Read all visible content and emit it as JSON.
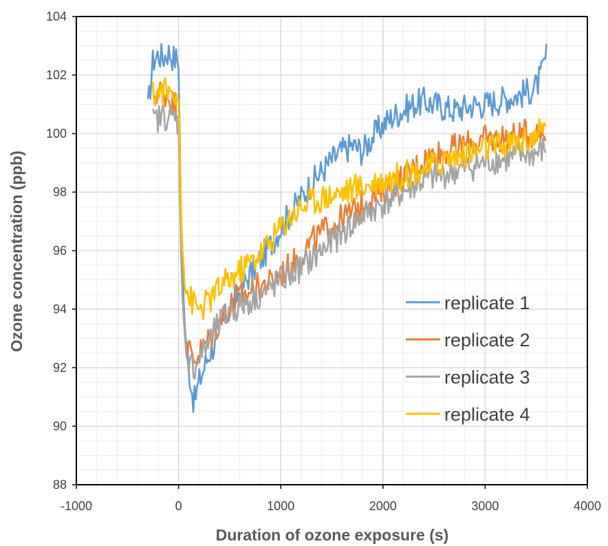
{
  "chart_data": {
    "type": "line",
    "title": "",
    "xlabel": "Duration of ozone exposure (s)",
    "ylabel": "Ozone concentration (ppb)",
    "xlim": [
      -1000,
      4000
    ],
    "ylim": [
      88,
      104
    ],
    "x_ticks": [
      -1000,
      0,
      1000,
      2000,
      3000,
      4000
    ],
    "y_ticks": [
      88,
      90,
      92,
      94,
      96,
      98,
      100,
      102,
      104
    ],
    "grid": true,
    "minor_grid": true,
    "legend_position": "lower-right",
    "series": [
      {
        "name": "replicate 1",
        "color": "#5B9BD5",
        "x": [
          -300,
          -250,
          -200,
          -150,
          -100,
          -50,
          0,
          30,
          60,
          100,
          150,
          200,
          250,
          300,
          350,
          400,
          500,
          600,
          700,
          800,
          900,
          1000,
          1100,
          1200,
          1300,
          1400,
          1500,
          1600,
          1700,
          1800,
          1900,
          2000,
          2100,
          2200,
          2300,
          2400,
          2500,
          2600,
          2700,
          2800,
          2900,
          3000,
          3100,
          3200,
          3300,
          3400,
          3500,
          3550,
          3600
        ],
        "y": [
          100.8,
          102.5,
          102.7,
          102.6,
          102.8,
          102.6,
          102.5,
          96.0,
          93.5,
          92.0,
          90.8,
          91.5,
          92.0,
          92.5,
          92.8,
          93.3,
          94.0,
          94.6,
          95.2,
          95.7,
          96.2,
          96.8,
          97.3,
          97.8,
          98.3,
          98.7,
          99.1,
          99.4,
          99.6,
          99.4,
          99.9,
          100.3,
          100.6,
          100.8,
          101.0,
          101.1,
          101.0,
          100.9,
          100.8,
          100.9,
          101.0,
          101.0,
          101.1,
          101.2,
          101.3,
          101.4,
          101.6,
          102.0,
          102.7
        ]
      },
      {
        "name": "replicate 2",
        "color": "#ED7D31",
        "x": [
          -250,
          -200,
          -150,
          -100,
          -50,
          0,
          30,
          60,
          100,
          150,
          200,
          250,
          300,
          350,
          400,
          500,
          600,
          700,
          800,
          900,
          1000,
          1100,
          1200,
          1300,
          1400,
          1500,
          1600,
          1700,
          1800,
          1900,
          2000,
          2100,
          2200,
          2300,
          2400,
          2500,
          2600,
          2700,
          2800,
          2900,
          3000,
          3100,
          3200,
          3300,
          3400,
          3500,
          3600
        ],
        "y": [
          101.2,
          101.5,
          101.4,
          101.3,
          101.0,
          101.0,
          95.0,
          93.3,
          92.6,
          92.3,
          92.5,
          92.7,
          93.0,
          93.2,
          93.6,
          94.1,
          94.4,
          94.6,
          94.8,
          94.9,
          95.2,
          95.5,
          95.9,
          96.3,
          96.6,
          96.9,
          97.1,
          97.3,
          97.6,
          97.8,
          98.0,
          98.3,
          98.5,
          98.8,
          99.1,
          99.3,
          99.4,
          99.5,
          99.6,
          99.7,
          99.8,
          99.8,
          99.9,
          99.9,
          100.0,
          100.0,
          100.1
        ]
      },
      {
        "name": "replicate 3",
        "color": "#A5A5A5",
        "x": [
          -250,
          -200,
          -150,
          -100,
          -50,
          0,
          30,
          60,
          100,
          150,
          200,
          250,
          300,
          350,
          400,
          500,
          600,
          700,
          800,
          900,
          1000,
          1100,
          1200,
          1300,
          1400,
          1500,
          1600,
          1700,
          1800,
          1900,
          2000,
          2100,
          2200,
          2300,
          2400,
          2500,
          2600,
          2700,
          2800,
          2900,
          3000,
          3100,
          3200,
          3300,
          3400,
          3500,
          3600
        ],
        "y": [
          100.4,
          100.5,
          100.6,
          100.6,
          100.5,
          100.4,
          95.0,
          93.0,
          92.2,
          92.0,
          92.3,
          92.6,
          92.9,
          93.2,
          93.5,
          93.9,
          94.1,
          94.3,
          94.5,
          94.7,
          95.0,
          95.2,
          95.4,
          95.7,
          96.0,
          96.3,
          96.6,
          96.9,
          97.2,
          97.4,
          97.6,
          97.8,
          98.0,
          98.2,
          98.4,
          98.5,
          98.6,
          98.7,
          98.8,
          98.9,
          99.0,
          99.1,
          99.1,
          99.2,
          99.3,
          99.3,
          99.5
        ]
      },
      {
        "name": "replicate 4",
        "color": "#FFC000",
        "x": [
          -250,
          -200,
          -150,
          -100,
          -50,
          0,
          30,
          60,
          100,
          150,
          200,
          250,
          300,
          350,
          400,
          500,
          600,
          700,
          800,
          900,
          1000,
          1100,
          1200,
          1300,
          1400,
          1500,
          1600,
          1700,
          1800,
          1900,
          2000,
          2100,
          2200,
          2300,
          2400,
          2500,
          2600,
          2700,
          2800,
          2900,
          3000,
          3100,
          3200,
          3300,
          3400,
          3500,
          3600
        ],
        "y": [
          101.3,
          101.4,
          101.5,
          101.4,
          101.4,
          101.5,
          96.5,
          95.0,
          94.4,
          94.2,
          94.0,
          94.1,
          94.3,
          94.5,
          94.7,
          95.0,
          95.3,
          95.6,
          95.9,
          96.3,
          96.8,
          97.2,
          97.5,
          97.7,
          97.8,
          97.9,
          98.0,
          98.1,
          98.2,
          98.3,
          98.4,
          98.5,
          98.6,
          98.7,
          98.8,
          98.9,
          99.1,
          99.2,
          99.3,
          99.4,
          99.5,
          99.5,
          99.6,
          99.7,
          99.8,
          99.9,
          100.2
        ]
      }
    ]
  }
}
